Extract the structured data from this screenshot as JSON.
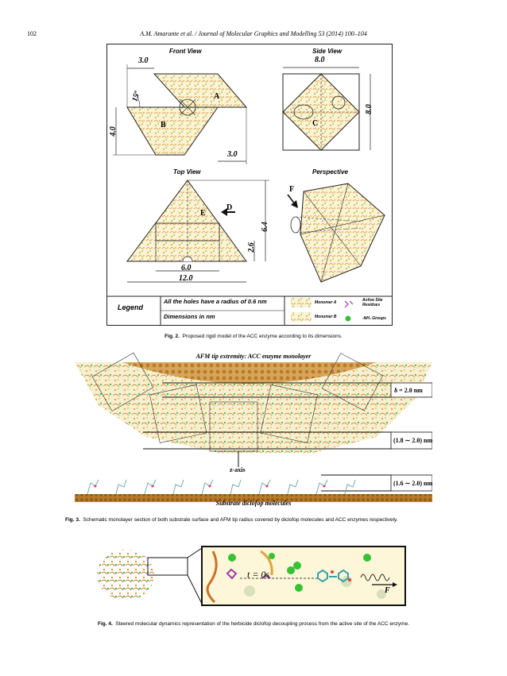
{
  "header": {
    "page_number": "102",
    "journal": "A.M. Amarante et al. / Journal of Molecular Graphics and Modelling 53 (2014) 100–104"
  },
  "fig2": {
    "views": {
      "front": "Front View",
      "side": "Side View",
      "top": "Top View",
      "perspective": "Perspective"
    },
    "dims": {
      "front_top": "3.0",
      "front_angle": "15º",
      "front_left": "4.0",
      "front_bottom": "3.0",
      "side_top": "8.0",
      "side_right": "8.0",
      "top_h1": "6.4",
      "top_h2": "2.6",
      "top_inner": "6.0",
      "top_base": "12.0"
    },
    "letters": {
      "A": "A",
      "B": "B",
      "C": "C",
      "D": "D",
      "E": "E",
      "F": "F"
    },
    "legend": {
      "title": "Legend",
      "holes": "All the holes have a radius of 0.6 nm",
      "dimensions": "Dimensions in nm",
      "monomer_a": "Monomer A",
      "monomer_b": "Monomer B",
      "active_site": "Active Site Residues",
      "nh2": "-NH₂ Groups"
    },
    "caption_label": "Fig. 2.",
    "caption_text": "Proposed rigid model of the ACC enzyme according to its dimensions."
  },
  "fig3": {
    "title": "AFM tip extremity: ACC enzyme monolayer",
    "delta": "δ = 2.0 nm",
    "range1": "(1.8 ∼ 2.0) nm",
    "zaxis": "z-axis",
    "range2": "(1.6 ∼ 2.0) nm",
    "substrate": "Substrate diclofop molecules",
    "caption_label": "Fig. 3.",
    "caption_text": "Schematic monolayer section of both substrate surface and AFM tip radius covered by diclofop molecules and ACC enzymes respectively."
  },
  "fig4": {
    "time": "t = 0s",
    "force": "F",
    "caption_label": "Fig. 4.",
    "caption_text": "Steered molecular dynamics representation of the herbicide diclofop decoupling process from the active site of the ACC enzyme."
  },
  "colors": {
    "enzyme_yellow": "#e8c64a",
    "enzyme_orange": "#c8702a",
    "nh2_green": "#35c235",
    "active_site_purple": "#9a3ca8",
    "substrate_brown": "#b97a2c"
  }
}
